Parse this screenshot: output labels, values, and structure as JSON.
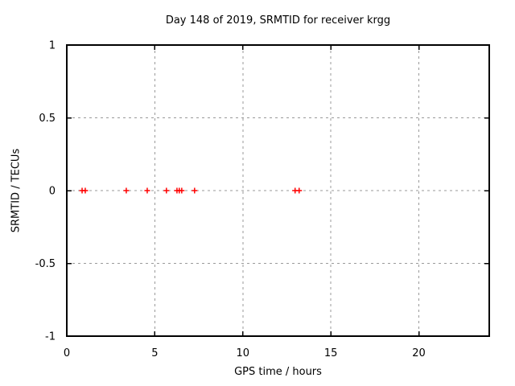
{
  "chart_data": {
    "type": "scatter",
    "title": "Day 148 of 2019, SRMTID for receiver krgg",
    "xlabel": "GPS time / hours",
    "ylabel": "SRMTID / TECUs",
    "xlim": [
      0,
      24
    ],
    "ylim": [
      -1,
      1
    ],
    "xticks": {
      "values": [
        0,
        5,
        10,
        15,
        20
      ],
      "labels": [
        "0",
        "5",
        "10",
        "15",
        "20"
      ]
    },
    "yticks": {
      "values": [
        1,
        0.5,
        0,
        -0.5,
        -1
      ],
      "labels": [
        "1",
        "0.5",
        "0",
        "-0.5",
        "-1"
      ]
    },
    "grid": "dashed",
    "legend_position": "none",
    "series": [
      {
        "name": "SRMTID",
        "marker": "plus",
        "color": "#ff0000",
        "x": [
          0.87,
          1.05,
          3.38,
          4.57,
          5.66,
          6.26,
          6.39,
          6.53,
          7.26,
          12.97,
          13.2
        ],
        "y": [
          0,
          0,
          0,
          0,
          0,
          0,
          0,
          0,
          0,
          0,
          0
        ]
      }
    ],
    "colors": {
      "background": "#ffffff",
      "axis": "#000000",
      "grid": "#9a9a9a",
      "marker": "#ff0000"
    }
  }
}
